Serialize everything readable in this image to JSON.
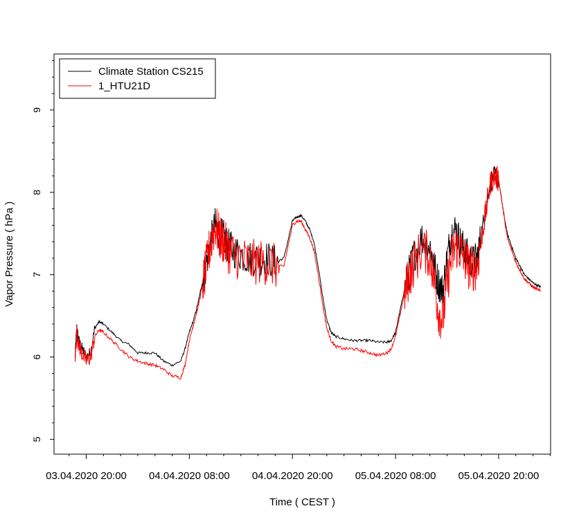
{
  "chart_data": {
    "type": "line",
    "xlabel": "Time ( CEST )",
    "ylabel": "Vapor Pressure ( hPa )",
    "x_unit": "hours",
    "x_ticks": [
      {
        "x": 20,
        "label": "03.04.2020 20:00"
      },
      {
        "x": 32,
        "label": "04.04.2020 08:00"
      },
      {
        "x": 44,
        "label": "04.04.2020 20:00"
      },
      {
        "x": 56,
        "label": "05.04.2020 08:00"
      },
      {
        "x": 68,
        "label": "05.04.2020 20:00"
      }
    ],
    "y_ticks": [
      5,
      6,
      7,
      8,
      9
    ],
    "xlim": [
      16.25,
      74.05
    ],
    "ylim": [
      4.82,
      9.68
    ],
    "legend_position": "top-left",
    "series": [
      {
        "name": "Climate Station CS215",
        "color": "#000000",
        "x": [
          18.7,
          18.9,
          19.1,
          19.5,
          20.0,
          20.5,
          21.0,
          21.5,
          22.0,
          23.0,
          24.0,
          25.0,
          26.0,
          27.0,
          28.0,
          29.0,
          30.0,
          31.0,
          31.5,
          32.0,
          32.5,
          33.0,
          33.5,
          34.0,
          34.5,
          35.0,
          35.5,
          36.0,
          36.5,
          37.0,
          38.0,
          39.0,
          40.0,
          41.0,
          42.0,
          43.0,
          44.0,
          44.5,
          45.0,
          45.5,
          46.0,
          46.5,
          47.0,
          47.5,
          48.0,
          48.5,
          49.0,
          50.0,
          51.0,
          52.0,
          53.0,
          54.0,
          55.0,
          55.5,
          56.0,
          56.5,
          57.0,
          57.5,
          58.0,
          59.0,
          60.0,
          60.5,
          61.0,
          61.5,
          62.0,
          62.5,
          63.0,
          63.5,
          64.0,
          64.5,
          65.0,
          65.5,
          66.0,
          66.5,
          67.0,
          67.5,
          68.0,
          68.5,
          69.0,
          69.5,
          70.0,
          70.5,
          71.0,
          71.5,
          72.0,
          72.5,
          72.9
        ],
        "y": [
          6.0,
          6.35,
          6.2,
          6.1,
          6.0,
          6.05,
          6.35,
          6.43,
          6.4,
          6.3,
          6.2,
          6.15,
          6.05,
          6.05,
          6.05,
          5.95,
          5.9,
          5.95,
          6.1,
          6.3,
          6.45,
          6.65,
          6.9,
          7.15,
          7.4,
          7.6,
          7.5,
          7.45,
          7.35,
          7.3,
          7.25,
          7.2,
          7.2,
          7.2,
          7.15,
          7.2,
          7.65,
          7.7,
          7.72,
          7.65,
          7.55,
          7.4,
          7.1,
          6.75,
          6.45,
          6.3,
          6.25,
          6.22,
          6.2,
          6.2,
          6.2,
          6.18,
          6.18,
          6.2,
          6.3,
          6.55,
          6.8,
          7.0,
          7.2,
          7.45,
          7.35,
          7.1,
          6.9,
          6.8,
          7.2,
          7.5,
          7.55,
          7.4,
          7.3,
          7.2,
          7.15,
          7.2,
          7.5,
          7.8,
          8.1,
          8.2,
          8.15,
          7.8,
          7.5,
          7.35,
          7.2,
          7.1,
          7.0,
          6.95,
          6.9,
          6.87,
          6.85
        ]
      },
      {
        "name": "1_HTU21D",
        "color": "#ff0000",
        "x": [
          18.7,
          18.9,
          19.1,
          19.5,
          20.0,
          20.5,
          21.0,
          21.5,
          22.0,
          23.0,
          24.0,
          25.0,
          26.0,
          27.0,
          28.0,
          29.0,
          30.0,
          31.0,
          31.5,
          32.0,
          32.5,
          33.0,
          33.5,
          34.0,
          34.5,
          35.0,
          35.5,
          36.0,
          36.5,
          37.0,
          38.0,
          39.0,
          40.0,
          41.0,
          42.0,
          43.0,
          44.0,
          44.5,
          45.0,
          45.5,
          46.0,
          46.5,
          47.0,
          47.5,
          48.0,
          48.5,
          49.0,
          50.0,
          51.0,
          52.0,
          53.0,
          54.0,
          55.0,
          55.5,
          56.0,
          56.5,
          57.0,
          57.5,
          58.0,
          59.0,
          60.0,
          60.5,
          61.0,
          61.5,
          62.0,
          62.5,
          63.0,
          63.5,
          64.0,
          64.5,
          65.0,
          65.5,
          66.0,
          66.5,
          67.0,
          67.5,
          68.0,
          68.5,
          69.0,
          69.5,
          70.0,
          70.5,
          71.0,
          71.5,
          72.0,
          72.5,
          72.9
        ],
        "y": [
          5.95,
          6.3,
          6.15,
          6.05,
          5.95,
          6.0,
          6.25,
          6.33,
          6.3,
          6.2,
          6.1,
          6.0,
          5.95,
          5.92,
          5.9,
          5.85,
          5.77,
          5.75,
          5.9,
          6.2,
          6.4,
          6.6,
          6.85,
          7.1,
          7.4,
          7.6,
          7.45,
          7.4,
          7.3,
          7.25,
          7.2,
          7.15,
          7.15,
          7.15,
          7.1,
          7.1,
          7.6,
          7.65,
          7.65,
          7.55,
          7.45,
          7.3,
          7.0,
          6.65,
          6.35,
          6.2,
          6.13,
          6.1,
          6.1,
          6.08,
          6.05,
          6.02,
          6.05,
          6.1,
          6.25,
          6.5,
          6.75,
          6.95,
          7.1,
          7.3,
          7.25,
          6.95,
          6.55,
          6.45,
          6.9,
          7.2,
          7.35,
          7.3,
          7.2,
          7.1,
          7.07,
          7.1,
          7.45,
          7.75,
          8.1,
          8.2,
          8.15,
          7.8,
          7.45,
          7.3,
          7.15,
          7.05,
          6.95,
          6.9,
          6.85,
          6.82,
          6.8
        ]
      }
    ]
  }
}
